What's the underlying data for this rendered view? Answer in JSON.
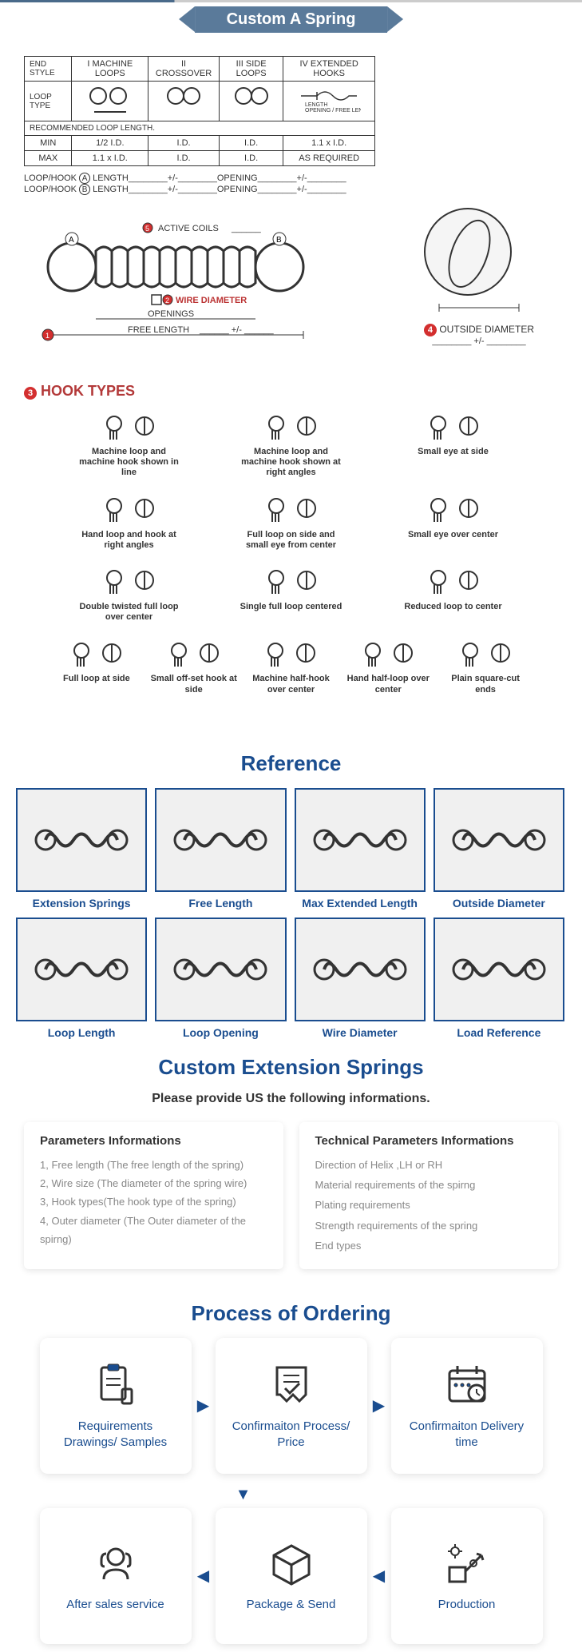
{
  "header": {
    "title": "Custom A Spring"
  },
  "spec_table": {
    "col_headers": [
      "END STYLE",
      "I MACHINE LOOPS",
      "II CROSSOVER",
      "III SIDE LOOPS",
      "IV EXTENDED HOOKS"
    ],
    "row_loop_type": "LOOP TYPE",
    "rec_row": "RECOMMENDED LOOP LENGTH.",
    "min_row": [
      "MIN",
      "1/2 I.D.",
      "I.D.",
      "I.D.",
      "1.1 x I.D."
    ],
    "max_row": [
      "MAX",
      "1.1 x I.D.",
      "I.D.",
      "I.D.",
      "AS REQUIRED"
    ],
    "loophook_a": "LOOP/HOOK",
    "loophook_b": "LOOP/HOOK",
    "length_label": "LENGTH",
    "opening_label": "OPENING",
    "pm": "+/-"
  },
  "diagram": {
    "active_coils": "ACTIVE COILS",
    "wire_diameter": "WIRE DIAMETER",
    "openings": "OPENINGS",
    "free_length": "FREE LENGTH",
    "outside_diameter": "OUTSIDE DIAMETER",
    "markers": {
      "1": "1",
      "2": "2",
      "4": "4",
      "5": "5"
    },
    "letters": {
      "a": "A",
      "b": "B"
    }
  },
  "hook_types": {
    "title": "HOOK TYPES",
    "marker": "3",
    "items": [
      "Machine loop and machine hook shown in line",
      "Machine loop and machine hook shown at right angles",
      "Small eye at side",
      "Hand loop and hook at right angles",
      "Full loop on side and small eye from center",
      "Small eye over center",
      "Double twisted full loop over center",
      "Single full loop centered",
      "Reduced loop to center",
      "Full loop at side",
      "Small off-set hook at side",
      "Machine half-hook over center",
      "Hand half-loop over center",
      "Plain square-cut ends"
    ]
  },
  "reference": {
    "title": "Reference",
    "items": [
      "Extension Springs",
      "Free Length",
      "Max Extended Length",
      "Outside Diameter",
      "Loop Length",
      "Loop Opening",
      "Wire Diameter",
      "Load Reference"
    ]
  },
  "custom": {
    "title": "Custom Extension Springs",
    "subtitle": "Please provide US the following informations.",
    "params_title": "Parameters Informations",
    "params": [
      "Free length (The free length of the spring)",
      "Wire size (The diameter of the spring wire)",
      "Hook types(The hook type of the spring)",
      "Outer diameter (The Outer diameter of the spirng)"
    ],
    "tech_title": "Technical Parameters Informations",
    "tech": [
      "Direction of Helix ,LH or RH",
      "Material requirements of the spirng",
      "Plating requirements",
      "Strength requirements of the spring",
      "End types"
    ]
  },
  "process": {
    "title": "Process of Ordering",
    "steps": [
      "Requirements Drawings/ Samples",
      "Confirmaiton Process/ Price",
      "Confirmaiton Delivery time",
      "Production",
      "Package & Send",
      "After sales service"
    ]
  },
  "colors": {
    "primary_blue": "#1a4d8f",
    "banner_bg": "#5a7a9a",
    "red_marker": "#d32f2f",
    "title_red": "#b33939",
    "text_gray": "#888888"
  }
}
